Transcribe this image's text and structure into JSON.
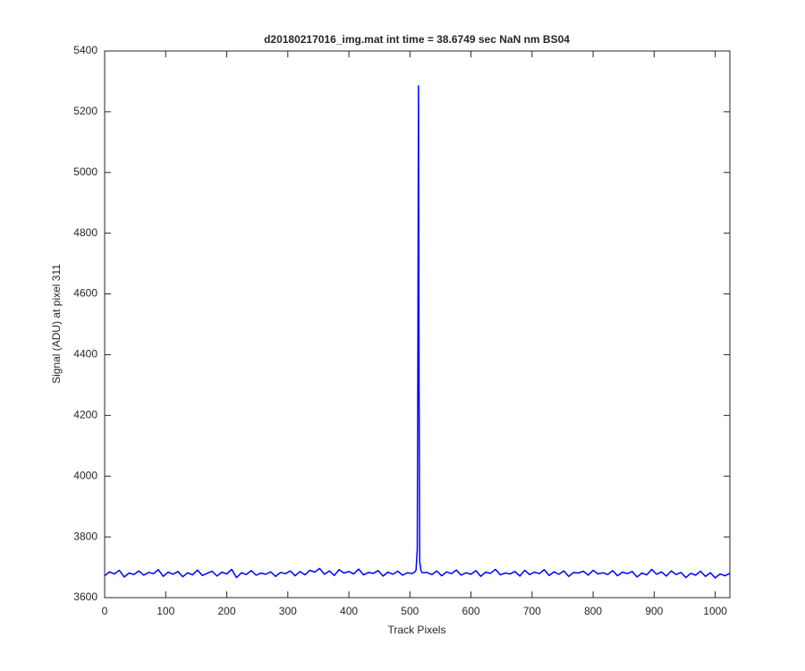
{
  "chart_data": {
    "type": "line",
    "title": "d20180217016_img.mat int time = 38.6749 sec  NaN nm BS04",
    "x_label": "Track Pixels",
    "y_label": "Signal (ADU) at pixel 311",
    "xlim": [
      0,
      1024
    ],
    "ylim": [
      3600,
      5400
    ],
    "xticks": [
      0,
      100,
      200,
      300,
      400,
      500,
      600,
      700,
      800,
      900,
      1000
    ],
    "yticks": [
      3600,
      3800,
      4000,
      4200,
      4400,
      4600,
      4800,
      5000,
      5200,
      5400
    ],
    "x": [
      0,
      8,
      16,
      24,
      32,
      40,
      48,
      56,
      64,
      72,
      80,
      88,
      96,
      104,
      112,
      120,
      128,
      136,
      144,
      152,
      160,
      168,
      176,
      184,
      192,
      200,
      208,
      216,
      224,
      232,
      240,
      248,
      256,
      264,
      272,
      280,
      288,
      296,
      304,
      312,
      320,
      328,
      336,
      344,
      352,
      360,
      368,
      376,
      384,
      392,
      400,
      408,
      416,
      424,
      432,
      440,
      448,
      456,
      464,
      472,
      480,
      488,
      496,
      504,
      508,
      510,
      512,
      513,
      514,
      515,
      516,
      518,
      520,
      528,
      536,
      544,
      552,
      560,
      568,
      576,
      584,
      592,
      600,
      608,
      616,
      624,
      632,
      640,
      648,
      656,
      664,
      672,
      680,
      688,
      696,
      704,
      712,
      720,
      728,
      736,
      744,
      752,
      760,
      768,
      776,
      784,
      792,
      800,
      808,
      816,
      824,
      832,
      840,
      848,
      856,
      864,
      872,
      880,
      888,
      896,
      904,
      912,
      920,
      928,
      936,
      944,
      952,
      960,
      968,
      976,
      984,
      992,
      1000,
      1008,
      1016,
      1024
    ],
    "series": [
      {
        "color": "#0000ff",
        "values": [
          3672,
          3685,
          3678,
          3690,
          3668,
          3681,
          3676,
          3688,
          3674,
          3683,
          3679,
          3692,
          3670,
          3684,
          3677,
          3686,
          3669,
          3682,
          3675,
          3691,
          3673,
          3680,
          3687,
          3671,
          3684,
          3678,
          3693,
          3666,
          3682,
          3676,
          3689,
          3674,
          3681,
          3677,
          3685,
          3670,
          3683,
          3679,
          3688,
          3672,
          3686,
          3675,
          3690,
          3684,
          3696,
          3677,
          3688,
          3673,
          3692,
          3681,
          3686,
          3678,
          3694,
          3675,
          3683,
          3680,
          3689,
          3671,
          3684,
          3677,
          3687,
          3674,
          3682,
          3679,
          3685,
          3690,
          3760,
          4400,
          5285,
          4300,
          3720,
          3690,
          3682,
          3683,
          3676,
          3688,
          3672,
          3685,
          3679,
          3691,
          3674,
          3682,
          3677,
          3689,
          3670,
          3684,
          3680,
          3693,
          3675,
          3681,
          3678,
          3686,
          3671,
          3690,
          3676,
          3684,
          3679,
          3692,
          3673,
          3685,
          3677,
          3688,
          3670,
          3683,
          3681,
          3687,
          3674,
          3690,
          3678,
          3682,
          3676,
          3689,
          3672,
          3684,
          3679,
          3686,
          3668,
          3681,
          3675,
          3693,
          3677,
          3685,
          3671,
          3688,
          3676,
          3683,
          3666,
          3680,
          3674,
          3687,
          3670,
          3682,
          3665,
          3678,
          3672,
          3680
        ]
      }
    ]
  }
}
